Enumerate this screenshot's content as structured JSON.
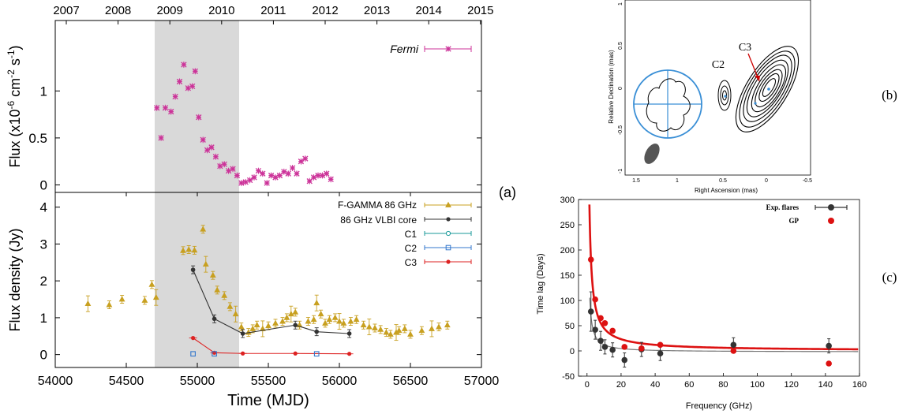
{
  "chart_data": [
    {
      "type": "scatter",
      "panel_label": "(a)",
      "top_axis_years": [
        "2007",
        "2008",
        "2009",
        "2010",
        "2011",
        "2012",
        "2013",
        "2014",
        "2015"
      ],
      "shaded_region_x": [
        54700,
        55300
      ],
      "top_panel": {
        "ylabel": "Flux  (x10",
        "ylabel_exp": "-6",
        "ylabel_unit": " cm",
        "ylabel_exp2": "-2",
        "ylabel_s": " s",
        "ylabel_exp3": "-1",
        "ylabel_close": ")",
        "ylim": [
          -0.08,
          1.75
        ],
        "yticks": [
          "0",
          "0.5",
          "1"
        ],
        "series": [
          {
            "name": "Fermi",
            "color": "#cc3399",
            "x": [
              54715,
              54745,
              54775,
              54815,
              54845,
              54875,
              54905,
              54935,
              54965,
              54985,
              55010,
              55040,
              55070,
              55100,
              55130,
              55160,
              55190,
              55220,
              55250,
              55280,
              55310,
              55340,
              55370,
              55400,
              55430,
              55460,
              55490,
              55520,
              55550,
              55580,
              55610,
              55640,
              55670,
              55700,
              55730,
              55760,
              55790,
              55820,
              55850,
              55880,
              55910,
              55940
            ],
            "y": [
              0.82,
              0.5,
              0.82,
              0.78,
              0.94,
              1.1,
              1.28,
              1.03,
              1.05,
              1.21,
              0.72,
              0.48,
              0.37,
              0.4,
              0.3,
              0.2,
              0.22,
              0.15,
              0.17,
              0.1,
              0.02,
              0.03,
              0.05,
              0.08,
              0.15,
              0.12,
              0.02,
              0.1,
              0.08,
              0.1,
              0.14,
              0.12,
              0.18,
              0.12,
              0.25,
              0.28,
              0.04,
              0.08,
              0.1,
              0.1,
              0.12,
              0.06
            ]
          }
        ]
      },
      "bottom_panel": {
        "ylabel": "Flux density (Jy)",
        "xlabel": "Time (MJD)",
        "xlim": [
          54000,
          57000
        ],
        "xticks": [
          "54000",
          "54500",
          "55000",
          "55500",
          "56000",
          "56500",
          "57000"
        ],
        "ylim": [
          -0.35,
          4.4
        ],
        "yticks": [
          "0",
          "1",
          "2",
          "3",
          "4"
        ],
        "series": [
          {
            "name": "F-GAMMA 86 GHz",
            "color": "#c8a020",
            "x": [
              54230,
              54380,
              54470,
              54630,
              54680,
              54710,
              54900,
              54940,
              54980,
              55040,
              55060,
              55110,
              55140,
              55190,
              55230,
              55270,
              55310,
              55360,
              55390,
              55420,
              55460,
              55500,
              55550,
              55600,
              55630,
              55660,
              55690,
              55720,
              55780,
              55820,
              55840,
              55870,
              55900,
              55930,
              55970,
              56000,
              56030,
              56080,
              56120,
              56170,
              56210,
              56250,
              56290,
              56330,
              56360,
              56400,
              56420,
              56460,
              56500,
              56580,
              56650,
              56700,
              56760
            ],
            "y": [
              1.38,
              1.35,
              1.5,
              1.47,
              1.9,
              1.55,
              2.82,
              2.85,
              2.83,
              3.4,
              2.45,
              2.15,
              1.75,
              1.6,
              1.3,
              1.1,
              0.75,
              0.6,
              0.7,
              0.8,
              0.7,
              0.78,
              0.85,
              0.9,
              1.0,
              1.1,
              1.15,
              0.8,
              0.9,
              0.95,
              1.4,
              1.1,
              0.85,
              0.95,
              1.0,
              0.9,
              0.85,
              0.9,
              0.95,
              0.8,
              0.75,
              0.72,
              0.68,
              0.6,
              0.55,
              0.6,
              0.65,
              0.7,
              0.55,
              0.65,
              0.7,
              0.75,
              0.8
            ]
          },
          {
            "name": "86 GHz VLBI core",
            "color": "#333333",
            "x": [
              54970,
              55120,
              55320,
              55690,
              55840,
              56070
            ],
            "y": [
              2.3,
              0.97,
              0.57,
              0.8,
              0.62,
              0.57
            ]
          },
          {
            "name": "C1",
            "color": "#1a9999",
            "x": [],
            "y": []
          },
          {
            "name": "C2",
            "color": "#3377cc",
            "x": [
              54970,
              55120,
              55840
            ],
            "y": [
              0.02,
              0.02,
              0.02
            ]
          },
          {
            "name": "C3",
            "color": "#dd2222",
            "x": [
              54970,
              55120,
              55320,
              55690,
              56070
            ],
            "y": [
              0.45,
              0.05,
              0.03,
              0.03,
              0.02
            ]
          }
        ]
      }
    },
    {
      "type": "contour",
      "panel_label": "(b)",
      "xlabel": "Right Ascension  (mas)",
      "ylabel": "Relative Declination  (mas)",
      "xticks": [
        "1.5",
        "1",
        "0.5",
        "0",
        "-0.5"
      ],
      "yticks": [
        "1",
        "0.5",
        "0",
        "-0.5",
        "-1"
      ],
      "labels": [
        "C2",
        "C3"
      ]
    },
    {
      "type": "scatter",
      "panel_label": "(c)",
      "xlabel": "Frequency (GHz)",
      "ylabel": "Time lag (Days)",
      "xlim": [
        -5,
        160
      ],
      "ylim": [
        -50,
        300
      ],
      "xticks": [
        "0",
        "20",
        "40",
        "60",
        "80",
        "100",
        "120",
        "140",
        "160"
      ],
      "yticks": [
        "-50",
        "0",
        "50",
        "100",
        "150",
        "200",
        "250",
        "300"
      ],
      "series": [
        {
          "name": "Exp. flares",
          "color": "#333333",
          "x": [
            2.3,
            4.8,
            8,
            10.5,
            15,
            22,
            32,
            43,
            86,
            142
          ],
          "y": [
            78,
            42,
            20,
            8,
            2,
            -18,
            3,
            -5,
            12,
            10
          ]
        },
        {
          "name": "GP",
          "color": "#dd1111",
          "x": [
            2.3,
            4.8,
            8,
            10.5,
            15,
            22,
            32,
            43,
            86,
            142
          ],
          "y": [
            181,
            102,
            65,
            55,
            40,
            8,
            5,
            12,
            0,
            -25
          ]
        }
      ]
    }
  ]
}
